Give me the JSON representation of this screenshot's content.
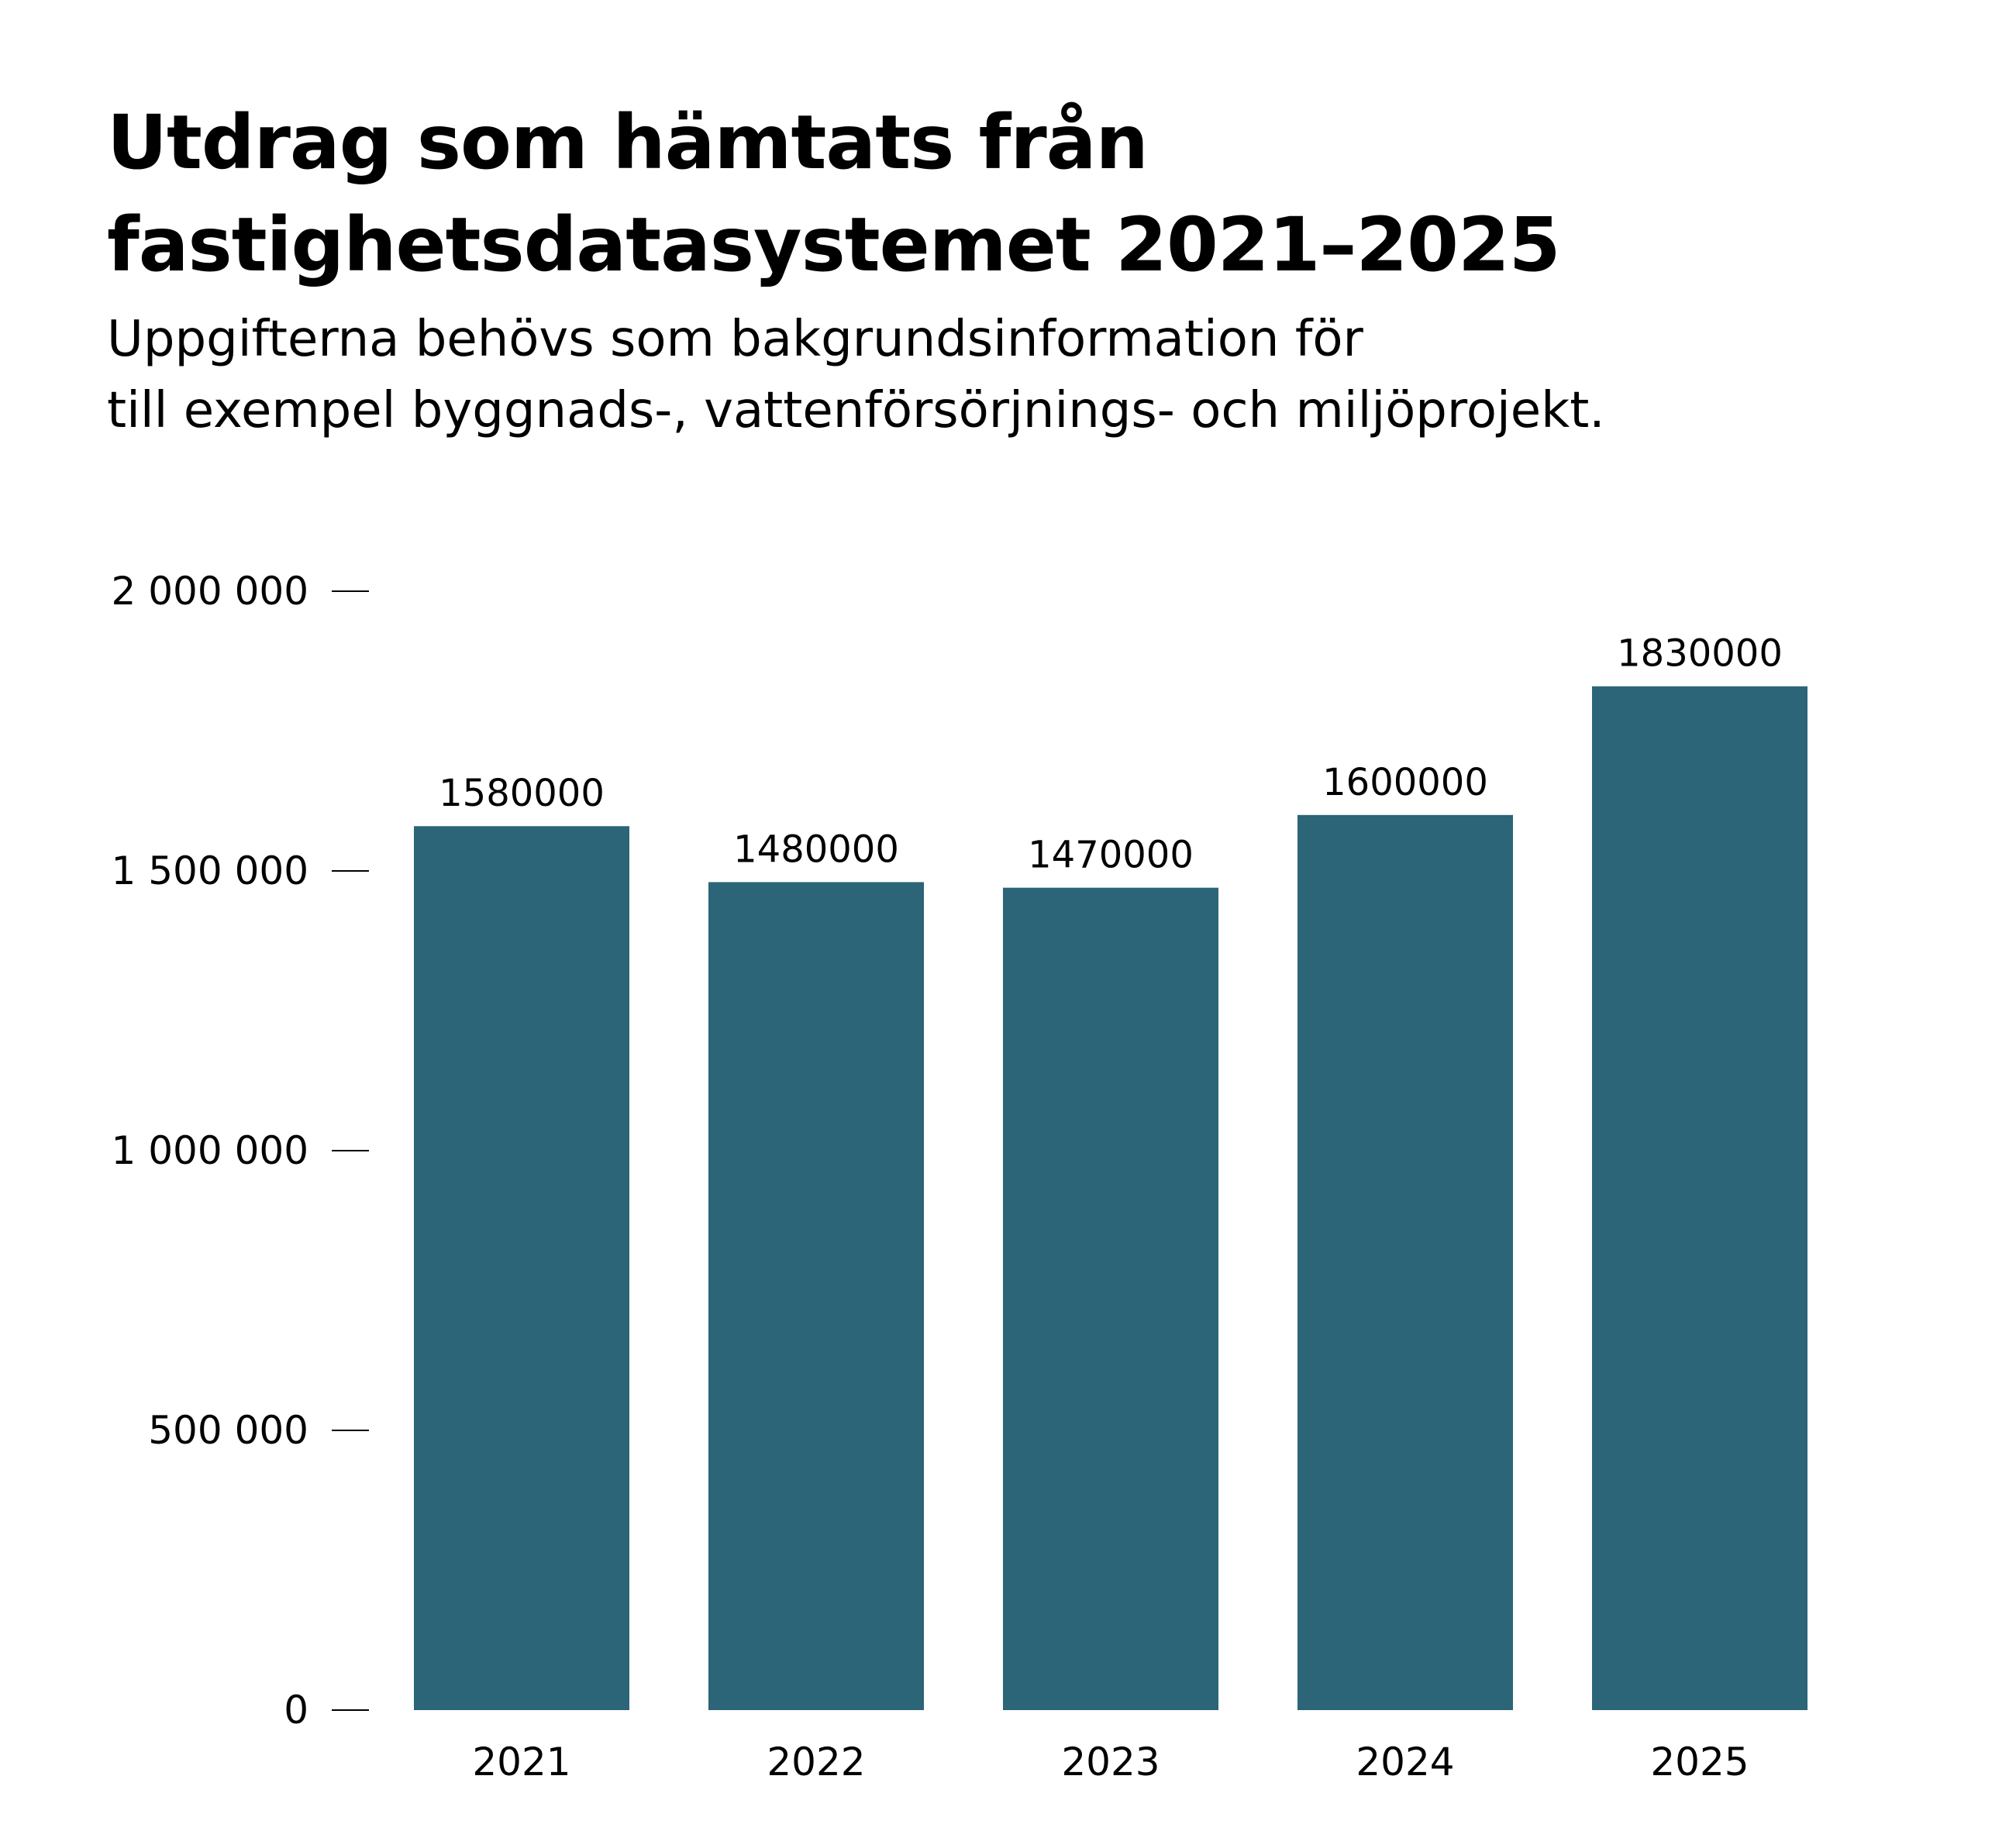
{
  "header": {
    "title_lines": [
      "Utdrag som hämtats från",
      "fastighetsdatasystemet 2021–2025"
    ],
    "subtitle_lines": [
      "Uppgifterna behövs som bakgrundsinformation för",
      "till exempel byggnads-, vattenförsörjnings- och miljöprojekt."
    ]
  },
  "colors": {
    "bar": "#2b6577",
    "axis_tick": "#000000",
    "text": "#000000"
  },
  "chart_data": {
    "type": "bar",
    "title": "Utdrag som hämtats från fastighetsdatasystemet 2021–2025",
    "subtitle": "Uppgifterna behövs som bakgrundsinformation för till exempel byggnads-, vattenförsörjnings- och miljöprojekt.",
    "xlabel": "",
    "ylabel": "",
    "categories": [
      "2021",
      "2022",
      "2023",
      "2024",
      "2025"
    ],
    "values": [
      1580000,
      1480000,
      1470000,
      1600000,
      1830000
    ],
    "value_labels": [
      "1580000",
      "1480000",
      "1470000",
      "1600000",
      "1830000"
    ],
    "ylim": [
      0,
      2000000
    ],
    "yticks": [
      0,
      500000,
      1000000,
      1500000,
      2000000
    ],
    "ytick_labels": [
      "0",
      "500 000",
      "1 000 000",
      "1 500 000",
      "2 000 000"
    ],
    "grid": false,
    "legend": "none"
  }
}
